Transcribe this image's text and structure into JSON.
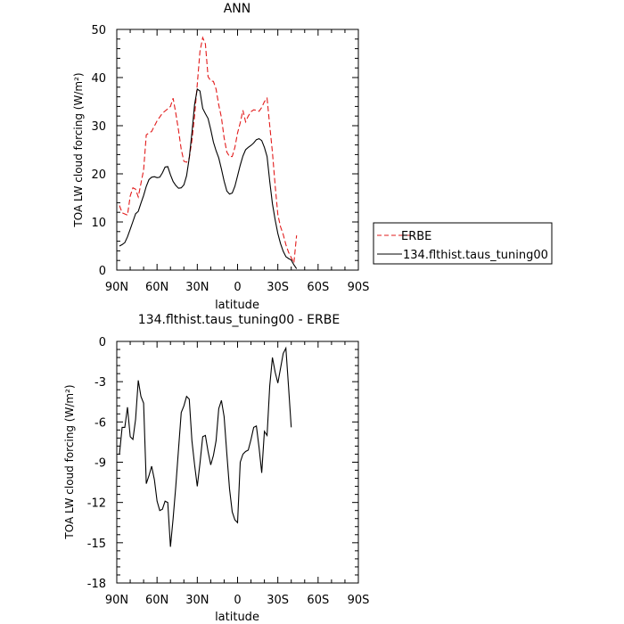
{
  "chart_data": [
    {
      "type": "line",
      "title": "ANN",
      "xlabel": "latitude",
      "ylabel": "TOA LW cloud forcing (W/m²)",
      "x_ticks": [
        "90N",
        "60N",
        "30N",
        "0",
        "30S",
        "60S",
        "90S"
      ],
      "y_ticks": [
        "0",
        "10",
        "20",
        "30",
        "40",
        "50"
      ],
      "xlim": [
        -90,
        90
      ],
      "ylim": [
        0,
        50
      ],
      "legend_placement": "outside-right",
      "colors": {
        "ERBE": "#e21b1b",
        "model": "#000000"
      },
      "series": [
        {
          "name": "ERBE",
          "style": "dashed",
          "points": [
            [
              -88,
              13.4
            ],
            [
              -86,
              11.9
            ],
            [
              -82,
              11.4
            ],
            [
              -80,
              15.4
            ],
            [
              -78,
              17.1
            ],
            [
              -76,
              16.8
            ],
            [
              -74,
              15.2
            ],
            [
              -72,
              18.0
            ],
            [
              -70,
              20.8
            ],
            [
              -68,
              28.1
            ],
            [
              -66,
              28.5
            ],
            [
              -64,
              28.8
            ],
            [
              -60,
              31.0
            ],
            [
              -56,
              32.6
            ],
            [
              -52,
              33.5
            ],
            [
              -50,
              34.0
            ],
            [
              -48,
              35.7
            ],
            [
              -46,
              32.6
            ],
            [
              -44,
              29.0
            ],
            [
              -42,
              25.1
            ],
            [
              -40,
              22.6
            ],
            [
              -38,
              22.4
            ],
            [
              -36,
              23.3
            ],
            [
              -34,
              26.9
            ],
            [
              -32,
              32.1
            ],
            [
              -30,
              38.6
            ],
            [
              -28,
              45.4
            ],
            [
              -26,
              48.3
            ],
            [
              -24,
              47.0
            ],
            [
              -22,
              40.2
            ],
            [
              -20,
              39.3
            ],
            [
              -18,
              39.2
            ],
            [
              -16,
              37.6
            ],
            [
              -14,
              34.3
            ],
            [
              -12,
              31.7
            ],
            [
              -10,
              27.5
            ],
            [
              -8,
              24.5
            ],
            [
              -6,
              23.6
            ],
            [
              -4,
              23.6
            ],
            [
              -2,
              25.5
            ],
            [
              0,
              28.5
            ],
            [
              2,
              30.6
            ],
            [
              4,
              33.2
            ],
            [
              6,
              30.8
            ],
            [
              8,
              32.0
            ],
            [
              10,
              32.9
            ],
            [
              12,
              33.3
            ],
            [
              14,
              33.2
            ],
            [
              16,
              33.0
            ],
            [
              18,
              33.8
            ],
            [
              20,
              35.0
            ],
            [
              22,
              35.7
            ],
            [
              24,
              30.0
            ],
            [
              26,
              24.5
            ],
            [
              28,
              17.5
            ],
            [
              30,
              11.5
            ],
            [
              32,
              9.0
            ],
            [
              34,
              7.4
            ],
            [
              36,
              5.3
            ],
            [
              38,
              3.7
            ],
            [
              40,
              2.6
            ],
            [
              42,
              1.5
            ],
            [
              44,
              7.2
            ]
          ]
        },
        {
          "name": "134.flthist.taus_tuning00",
          "style": "solid",
          "points": [
            [
              -88,
              5.0
            ],
            [
              -86,
              5.3
            ],
            [
              -84,
              5.7
            ],
            [
              -82,
              6.9
            ],
            [
              -80,
              8.5
            ],
            [
              -78,
              10.1
            ],
            [
              -76,
              11.7
            ],
            [
              -74,
              12.2
            ],
            [
              -72,
              13.9
            ],
            [
              -70,
              15.5
            ],
            [
              -68,
              17.4
            ],
            [
              -66,
              18.8
            ],
            [
              -64,
              19.3
            ],
            [
              -62,
              19.4
            ],
            [
              -60,
              19.2
            ],
            [
              -58,
              19.3
            ],
            [
              -56,
              20.2
            ],
            [
              -54,
              21.4
            ],
            [
              -52,
              21.5
            ],
            [
              -50,
              19.8
            ],
            [
              -48,
              18.4
            ],
            [
              -46,
              17.6
            ],
            [
              -44,
              17.0
            ],
            [
              -42,
              17.1
            ],
            [
              -40,
              17.7
            ],
            [
              -38,
              19.6
            ],
            [
              -36,
              23.3
            ],
            [
              -34,
              28.5
            ],
            [
              -32,
              34.4
            ],
            [
              -30,
              37.6
            ],
            [
              -28,
              37.2
            ],
            [
              -26,
              33.6
            ],
            [
              -24,
              32.5
            ],
            [
              -22,
              31.5
            ],
            [
              -20,
              29.2
            ],
            [
              -18,
              26.6
            ],
            [
              -16,
              24.8
            ],
            [
              -14,
              23.3
            ],
            [
              -12,
              21.0
            ],
            [
              -10,
              18.5
            ],
            [
              -8,
              16.4
            ],
            [
              -6,
              15.8
            ],
            [
              -4,
              16.0
            ],
            [
              -2,
              17.4
            ],
            [
              0,
              19.6
            ],
            [
              2,
              21.8
            ],
            [
              4,
              23.7
            ],
            [
              6,
              25.0
            ],
            [
              8,
              25.5
            ],
            [
              10,
              25.9
            ],
            [
              12,
              26.4
            ],
            [
              14,
              27.1
            ],
            [
              16,
              27.3
            ],
            [
              18,
              26.9
            ],
            [
              20,
              25.5
            ],
            [
              22,
              23.6
            ],
            [
              24,
              18.4
            ],
            [
              26,
              13.8
            ],
            [
              28,
              10.4
            ],
            [
              30,
              7.6
            ],
            [
              32,
              5.5
            ],
            [
              34,
              3.9
            ],
            [
              36,
              2.8
            ],
            [
              38,
              2.4
            ],
            [
              40,
              2.1
            ],
            [
              42,
              1.1
            ],
            [
              44,
              0.3
            ]
          ]
        }
      ]
    },
    {
      "type": "line",
      "title": "134.flthist.taus_tuning00 - ERBE",
      "xlabel": "latitude",
      "ylabel": "TOA LW cloud forcing (W/m²)",
      "x_ticks": [
        "90N",
        "60N",
        "30N",
        "0",
        "30S",
        "60S",
        "90S"
      ],
      "y_ticks": [
        "0",
        "-3",
        "-6",
        "-9",
        "-12",
        "-15",
        "-18"
      ],
      "xlim": [
        -90,
        90
      ],
      "ylim": [
        -18,
        0
      ],
      "colors": {
        "model": "#000000"
      },
      "series": [
        {
          "name": "134.flthist.taus_tuning00 - ERBE",
          "style": "solid",
          "points": [
            [
              -88,
              -8.4
            ],
            [
              -86,
              -6.4
            ],
            [
              -84,
              -6.4
            ],
            [
              -82,
              -4.9
            ],
            [
              -80,
              -7.1
            ],
            [
              -78,
              -7.3
            ],
            [
              -76,
              -5.8
            ],
            [
              -74,
              -2.9
            ],
            [
              -72,
              -4.1
            ],
            [
              -70,
              -4.6
            ],
            [
              -68,
              -10.6
            ],
            [
              -66,
              -10.0
            ],
            [
              -64,
              -9.3
            ],
            [
              -62,
              -10.3
            ],
            [
              -60,
              -11.9
            ],
            [
              -58,
              -12.6
            ],
            [
              -56,
              -12.5
            ],
            [
              -54,
              -11.9
            ],
            [
              -52,
              -12.0
            ],
            [
              -50,
              -15.3
            ],
            [
              -48,
              -13.2
            ],
            [
              -46,
              -10.8
            ],
            [
              -44,
              -8.0
            ],
            [
              -42,
              -5.3
            ],
            [
              -40,
              -4.8
            ],
            [
              -38,
              -4.1
            ],
            [
              -36,
              -4.3
            ],
            [
              -34,
              -7.4
            ],
            [
              -32,
              -9.2
            ],
            [
              -30,
              -10.8
            ],
            [
              -28,
              -9.1
            ],
            [
              -26,
              -7.1
            ],
            [
              -24,
              -7.0
            ],
            [
              -22,
              -8.2
            ],
            [
              -20,
              -9.2
            ],
            [
              -18,
              -8.5
            ],
            [
              -16,
              -7.4
            ],
            [
              -14,
              -5.0
            ],
            [
              -12,
              -4.4
            ],
            [
              -10,
              -5.6
            ],
            [
              -8,
              -8.4
            ],
            [
              -6,
              -11.0
            ],
            [
              -4,
              -12.7
            ],
            [
              -2,
              -13.3
            ],
            [
              0,
              -13.5
            ],
            [
              2,
              -9.0
            ],
            [
              4,
              -8.4
            ],
            [
              6,
              -8.2
            ],
            [
              8,
              -8.1
            ],
            [
              10,
              -7.3
            ],
            [
              12,
              -6.4
            ],
            [
              14,
              -6.3
            ],
            [
              16,
              -7.9
            ],
            [
              18,
              -9.8
            ],
            [
              20,
              -6.7
            ],
            [
              22,
              -7.0
            ],
            [
              24,
              -3.3
            ],
            [
              26,
              -1.2
            ],
            [
              28,
              -2.3
            ],
            [
              30,
              -3.1
            ],
            [
              32,
              -2.0
            ],
            [
              34,
              -0.9
            ],
            [
              36,
              -0.5
            ],
            [
              38,
              -3.4
            ],
            [
              40,
              -6.4
            ]
          ]
        }
      ]
    }
  ]
}
